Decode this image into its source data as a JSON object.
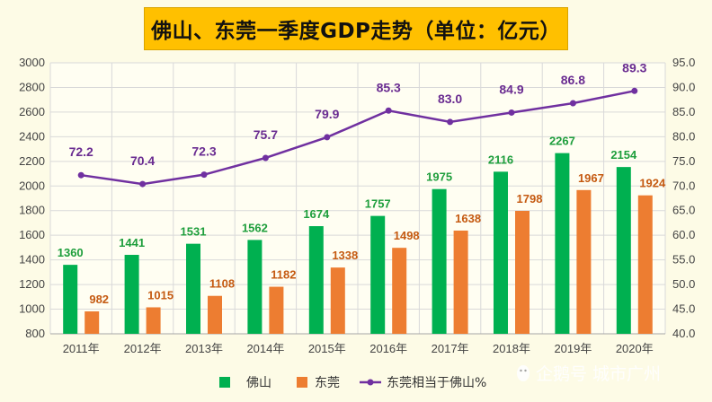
{
  "chart_data": {
    "type": "bar",
    "title": "佛山、东莞一季度GDP走势（单位：亿元）",
    "categories": [
      "2011年",
      "2012年",
      "2013年",
      "2014年",
      "2015年",
      "2016年",
      "2017年",
      "2018年",
      "2019年",
      "2020年"
    ],
    "series": [
      {
        "name": "佛山",
        "type": "bar",
        "axis": "left",
        "color": "#00B050",
        "values": [
          1360,
          1441,
          1531,
          1562,
          1674,
          1757,
          1975,
          2116,
          2267,
          2154
        ]
      },
      {
        "name": "东莞",
        "type": "bar",
        "axis": "left",
        "color": "#ED7D31",
        "values": [
          982,
          1015,
          1108,
          1182,
          1338,
          1498,
          1638,
          1798,
          1967,
          1924
        ]
      },
      {
        "name": "东莞相当于佛山%",
        "type": "line",
        "axis": "right",
        "color": "#7030A0",
        "values": [
          72.2,
          70.4,
          72.3,
          75.7,
          79.9,
          85.3,
          83.0,
          84.9,
          86.8,
          89.3
        ]
      }
    ],
    "y_left": {
      "min": 800,
      "max": 3000,
      "step": 200,
      "tick_labels": [
        "800",
        "1000",
        "1200",
        "1400",
        "1600",
        "1800",
        "2000",
        "2200",
        "2400",
        "2600",
        "2800",
        "3000"
      ]
    },
    "y_right": {
      "min": 40.0,
      "max": 95.0,
      "step": 5,
      "tick_labels": [
        "40.0",
        "45.0",
        "50.0",
        "55.0",
        "60.0",
        "65.0",
        "70.0",
        "75.0",
        "80.0",
        "85.0",
        "90.0",
        "95.0"
      ]
    },
    "ratio_labels": [
      "72.2",
      "70.4",
      "72.3",
      "75.7",
      "79.9",
      "85.3",
      "83.0",
      "84.9",
      "86.8",
      "89.3"
    ],
    "grid": true,
    "legend_position": "bottom"
  },
  "legend": {
    "foshan": "佛山",
    "dongguan": "东莞",
    "ratio": "东莞相当于佛山%"
  },
  "watermark": {
    "text": "企鹅号 城市广州",
    "icon": "penguin-icon"
  },
  "colors": {
    "background": "#FDFBE6",
    "title_bg": "#FFC000",
    "foshan": "#00B050",
    "dongguan": "#ED7D31",
    "ratio": "#7030A0",
    "grid": "#D9D9D9"
  }
}
